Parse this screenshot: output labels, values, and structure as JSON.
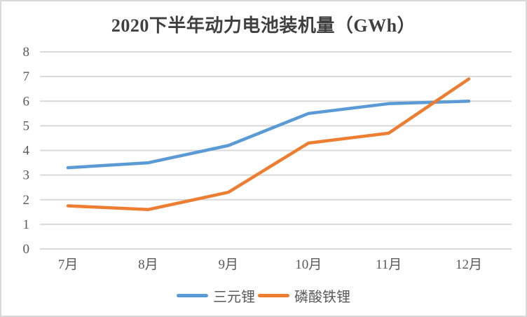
{
  "chart_data": {
    "type": "line",
    "title": "2020下半年动力电池装机量（GWh）",
    "categories": [
      "7月",
      "8月",
      "9月",
      "10月",
      "11月",
      "12月"
    ],
    "series": [
      {
        "name": "三元锂",
        "color": "#5B9BD5",
        "values": [
          3.3,
          3.5,
          4.2,
          5.5,
          5.9,
          6.0
        ]
      },
      {
        "name": "磷酸铁锂",
        "color": "#ED7D31",
        "values": [
          1.75,
          1.6,
          2.3,
          4.3,
          4.7,
          6.9
        ]
      }
    ],
    "ylim": [
      0,
      8
    ],
    "yticks": [
      0,
      1,
      2,
      3,
      4,
      5,
      6,
      7,
      8
    ],
    "xlabel": "",
    "ylabel": "",
    "grid": true,
    "legend_position": "bottom",
    "colors": {
      "gridline": "#D9D9D9",
      "axis_line": "#D9D9D9",
      "tick_label": "#595959",
      "title": "#404040",
      "frame_border": "#D9D9D9",
      "background": "#FFFFFF"
    }
  }
}
